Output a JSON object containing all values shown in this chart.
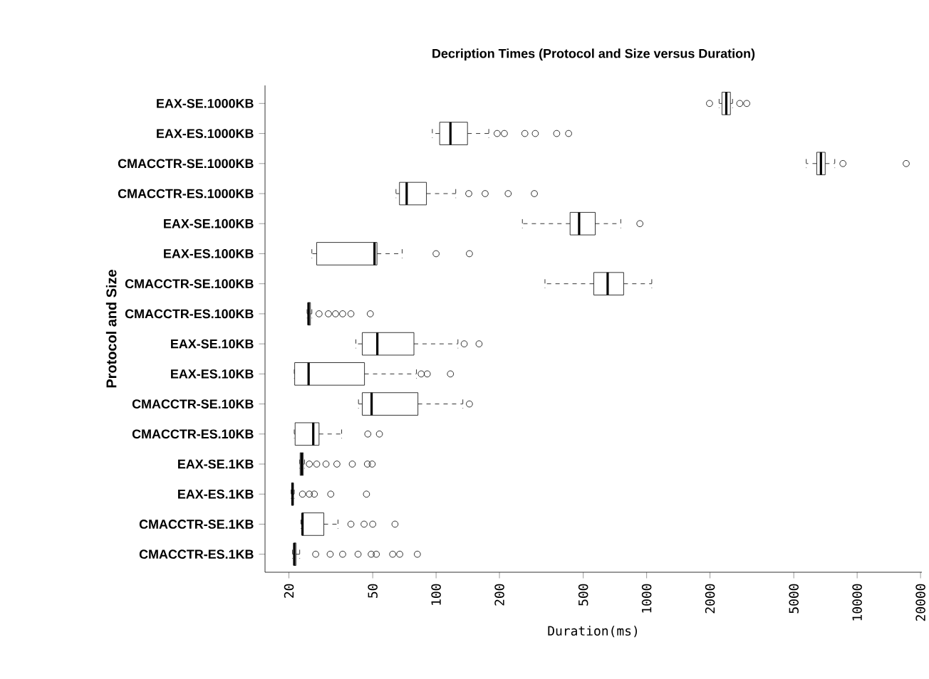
{
  "chart_data": {
    "type": "box",
    "title": "Decription Times (Protocol and Size versus Duration)",
    "xlabel": "Duration(ms)",
    "ylabel": "Protocol and Size",
    "orientation": "horizontal",
    "log": "x",
    "grid": false,
    "marker": "circle",
    "categories": [
      "EAX-SE.1000KB",
      "EAX-ES.1000KB",
      "CMACCTR-SE.1000KB",
      "CMACCTR-ES.1000KB",
      "EAX-SE.100KB",
      "EAX-ES.100KB",
      "CMACCTR-SE.100KB",
      "CMACCTR-ES.100KB",
      "EAX-SE.10KB",
      "EAX-ES.10KB",
      "CMACCTR-SE.10KB",
      "CMACCTR-ES.10KB",
      "EAX-SE.1KB",
      "EAX-ES.1KB",
      "CMACCTR-SE.1KB",
      "CMACCTR-ES.1KB"
    ],
    "xlim": [
      15.4,
      20300
    ],
    "xticks": [
      20,
      50,
      100,
      200,
      500,
      1000,
      2000,
      5000,
      10000,
      20000
    ],
    "boxes": [
      {
        "low": 2210,
        "q1": 2280,
        "median": 2390,
        "q3": 2500,
        "high": 2560,
        "outliers": [
          1990,
          2770,
          2990
        ]
      },
      {
        "low": 96,
        "q1": 104,
        "median": 117,
        "q3": 141,
        "high": 178,
        "outliers": [
          195,
          211,
          264,
          296,
          374,
          426
        ]
      },
      {
        "low": 5730,
        "q1": 6430,
        "median": 6730,
        "q3": 7050,
        "high": 7830,
        "outliers": [
          8560,
          17100
        ]
      },
      {
        "low": 64.5,
        "q1": 67,
        "median": 72.5,
        "q3": 90,
        "high": 124,
        "outliers": [
          143,
          171,
          220,
          293
        ]
      },
      {
        "low": 257,
        "q1": 433,
        "median": 478,
        "q3": 570,
        "high": 754,
        "outliers": [
          929
        ]
      },
      {
        "low": 25.7,
        "q1": 27.1,
        "median": 51,
        "q3": 52.4,
        "high": 69,
        "outliers": [
          100,
          144
        ]
      },
      {
        "low": 329,
        "q1": 561,
        "median": 653,
        "q3": 778,
        "high": 1058
      },
      {
        "low": 24.4,
        "q1": 24.6,
        "median": 24.8,
        "q3": 25.3,
        "high": 25.7,
        "outliers": [
          27.8,
          30.8,
          33.3,
          36,
          39.4,
          48.7
        ]
      },
      {
        "low": 41.6,
        "q1": 44.6,
        "median": 52.6,
        "q3": 78.5,
        "high": 127,
        "outliers": [
          136,
          160
        ]
      },
      {
        "low": 21.2,
        "q1": 21.3,
        "median": 24.8,
        "q3": 45.7,
        "high": 80.7,
        "outliers": [
          85,
          90.8,
          117
        ]
      },
      {
        "low": 42.8,
        "q1": 44.6,
        "median": 49.4,
        "q3": 82,
        "high": 134,
        "outliers": [
          144
        ]
      },
      {
        "low": 21.2,
        "q1": 21.4,
        "median": 26.1,
        "q3": 27.8,
        "high": 35.6,
        "outliers": [
          47.4,
          53.8
        ]
      },
      {
        "low": 22.5,
        "q1": 22.6,
        "median": 23,
        "q3": 23.4,
        "high": 23.7,
        "outliers": [
          25,
          27.1,
          30,
          33.8,
          40,
          47.2,
          49.7
        ]
      },
      {
        "low": 20.5,
        "q1": 20.6,
        "median": 20.8,
        "q3": 21,
        "high": 21.2,
        "outliers": [
          23.2,
          25,
          26.4,
          31.6,
          46.7
        ]
      },
      {
        "low": 22.8,
        "q1": 23.1,
        "median": 23.2,
        "q3": 29.3,
        "high": 34.2,
        "outliers": [
          39.4,
          45.5,
          50,
          63.8
        ]
      },
      {
        "low": 20.8,
        "q1": 21.1,
        "median": 21.2,
        "q3": 21.6,
        "high": 22.5,
        "outliers": [
          26.8,
          31.4,
          36,
          42.6,
          49.2,
          52,
          62.2,
          67.2,
          81.5
        ]
      }
    ]
  }
}
